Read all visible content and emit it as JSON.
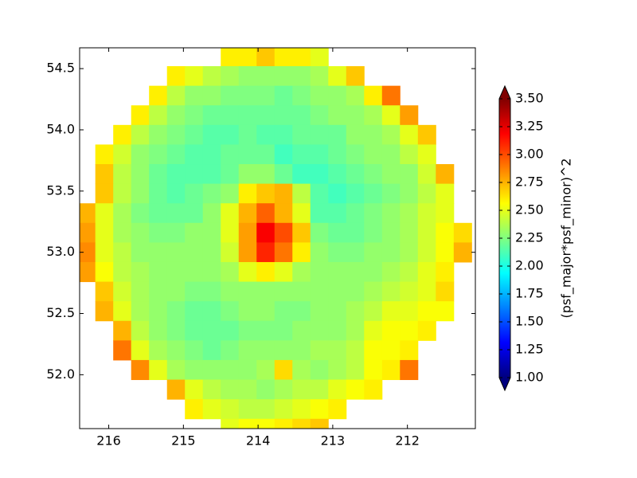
{
  "chart_data": {
    "type": "heatmap",
    "colormap": "jet",
    "colorbar_label": "(psf_major*psf_minor)^2",
    "clim": [
      1.0,
      3.5
    ],
    "cticks": [
      {
        "value": 1.0,
        "label": "1.00"
      },
      {
        "value": 1.25,
        "label": "1.25"
      },
      {
        "value": 1.5,
        "label": "1.50"
      },
      {
        "value": 1.75,
        "label": "1.75"
      },
      {
        "value": 2.0,
        "label": "2.00"
      },
      {
        "value": 2.25,
        "label": "2.25"
      },
      {
        "value": 2.5,
        "label": "2.50"
      },
      {
        "value": 2.75,
        "label": "2.75"
      },
      {
        "value": 3.0,
        "label": "3.00"
      },
      {
        "value": 3.25,
        "label": "3.25"
      },
      {
        "value": 3.5,
        "label": "3.50"
      }
    ],
    "xlim": [
      216.39,
      211.09
    ],
    "ylim": [
      51.56,
      54.67
    ],
    "xticks": [
      216,
      215,
      214,
      213,
      212
    ],
    "yticks": [
      {
        "value": 52.0,
        "label": "52.0"
      },
      52.5,
      {
        "value": 53.0,
        "label": "53.0"
      },
      53.5,
      {
        "value": 54.0,
        "label": "54.0"
      },
      54.5
    ],
    "x": [
      216.3,
      216.06,
      215.82,
      215.58,
      215.34,
      215.1,
      214.86,
      214.62,
      214.38,
      214.14,
      213.9,
      213.66,
      213.42,
      213.18,
      212.94,
      212.7,
      212.46,
      212.22,
      211.98,
      211.74,
      211.5,
      211.26
    ],
    "y": [
      54.6,
      54.44,
      54.28,
      54.12,
      53.96,
      53.8,
      53.64,
      53.48,
      53.32,
      53.16,
      53.0,
      52.84,
      52.68,
      52.52,
      52.36,
      52.2,
      52.04,
      51.88,
      51.72,
      51.56
    ],
    "z": [
      [
        null,
        null,
        null,
        null,
        null,
        null,
        null,
        null,
        2.6,
        2.6,
        2.7,
        2.6,
        2.6,
        2.5,
        null,
        null,
        null,
        null,
        null,
        null,
        null,
        null
      ],
      [
        null,
        null,
        null,
        null,
        null,
        2.6,
        2.5,
        2.4,
        2.35,
        2.3,
        2.3,
        2.3,
        2.3,
        2.35,
        2.5,
        2.7,
        null,
        null,
        null,
        null,
        null,
        null
      ],
      [
        null,
        null,
        null,
        null,
        2.6,
        2.4,
        2.3,
        2.3,
        2.25,
        2.25,
        2.25,
        2.2,
        2.25,
        2.3,
        2.3,
        2.35,
        2.6,
        2.9,
        null,
        null,
        null,
        null
      ],
      [
        null,
        null,
        null,
        2.6,
        2.4,
        2.3,
        2.25,
        2.2,
        2.2,
        2.2,
        2.2,
        2.2,
        2.2,
        2.25,
        2.3,
        2.3,
        2.35,
        2.5,
        2.8,
        null,
        null,
        null
      ],
      [
        null,
        null,
        2.6,
        2.4,
        2.3,
        2.25,
        2.2,
        2.15,
        2.15,
        2.2,
        2.15,
        2.15,
        2.2,
        2.2,
        2.2,
        2.3,
        2.3,
        2.35,
        2.5,
        2.7,
        null,
        null
      ],
      [
        null,
        2.6,
        2.45,
        2.3,
        2.25,
        2.2,
        2.15,
        2.15,
        2.2,
        2.2,
        2.2,
        2.1,
        2.15,
        2.15,
        2.2,
        2.25,
        2.3,
        2.3,
        2.4,
        2.5,
        null,
        null
      ],
      [
        null,
        2.7,
        2.4,
        2.3,
        2.2,
        2.15,
        2.15,
        2.15,
        2.2,
        2.3,
        2.3,
        2.2,
        2.1,
        2.1,
        2.15,
        2.2,
        2.25,
        2.3,
        2.3,
        2.45,
        2.75,
        null
      ],
      [
        null,
        2.7,
        2.4,
        2.3,
        2.2,
        2.15,
        2.2,
        2.25,
        2.3,
        2.6,
        2.7,
        2.75,
        2.4,
        2.15,
        2.1,
        2.15,
        2.2,
        2.25,
        2.3,
        2.4,
        2.5,
        null
      ],
      [
        2.75,
        2.5,
        2.35,
        2.25,
        2.2,
        2.2,
        2.2,
        2.3,
        2.5,
        2.75,
        2.95,
        2.75,
        2.5,
        2.15,
        2.15,
        2.2,
        2.25,
        2.3,
        2.35,
        2.45,
        2.5,
        null
      ],
      [
        2.8,
        2.5,
        2.35,
        2.3,
        2.25,
        2.25,
        2.3,
        2.3,
        2.5,
        2.8,
        3.2,
        3.0,
        2.7,
        2.25,
        2.2,
        2.2,
        2.25,
        2.3,
        2.35,
        2.45,
        2.55,
        2.65
      ],
      [
        2.85,
        2.5,
        2.4,
        2.3,
        2.3,
        2.3,
        2.3,
        2.3,
        2.45,
        2.8,
        3.1,
        2.9,
        2.6,
        2.3,
        2.25,
        2.25,
        2.3,
        2.3,
        2.35,
        2.45,
        2.55,
        2.75
      ],
      [
        2.8,
        2.55,
        2.4,
        2.35,
        2.3,
        2.3,
        2.3,
        2.3,
        2.35,
        2.5,
        2.6,
        2.5,
        2.35,
        2.3,
        2.3,
        2.3,
        2.3,
        2.35,
        2.4,
        2.5,
        2.6,
        null
      ],
      [
        null,
        2.7,
        2.45,
        2.35,
        2.3,
        2.3,
        2.25,
        2.25,
        2.3,
        2.3,
        2.3,
        2.3,
        2.3,
        2.3,
        2.3,
        2.3,
        2.35,
        2.4,
        2.45,
        2.5,
        2.65,
        null
      ],
      [
        null,
        2.75,
        2.5,
        2.35,
        2.3,
        2.25,
        2.2,
        2.2,
        2.25,
        2.3,
        2.3,
        2.25,
        2.25,
        2.3,
        2.3,
        2.35,
        2.4,
        2.5,
        2.5,
        2.55,
        2.55,
        null
      ],
      [
        null,
        null,
        2.75,
        2.4,
        2.3,
        2.25,
        2.2,
        2.2,
        2.2,
        2.25,
        2.25,
        2.25,
        2.3,
        2.3,
        2.3,
        2.35,
        2.5,
        2.55,
        2.55,
        2.6,
        null,
        null
      ],
      [
        null,
        null,
        2.9,
        2.5,
        2.35,
        2.3,
        2.25,
        2.2,
        2.25,
        2.3,
        2.3,
        2.3,
        2.3,
        2.35,
        2.35,
        2.4,
        2.55,
        2.55,
        2.6,
        null,
        null,
        null
      ],
      [
        null,
        null,
        null,
        2.85,
        2.5,
        2.35,
        2.3,
        2.3,
        2.3,
        2.3,
        2.35,
        2.65,
        2.35,
        2.3,
        2.35,
        2.4,
        2.55,
        2.6,
        2.9,
        null,
        null,
        null
      ],
      [
        null,
        null,
        null,
        null,
        null,
        2.75,
        2.5,
        2.4,
        2.35,
        2.35,
        2.3,
        2.35,
        2.4,
        2.4,
        2.5,
        2.55,
        2.6,
        null,
        null,
        null,
        null,
        null
      ],
      [
        null,
        null,
        null,
        null,
        null,
        null,
        2.6,
        2.5,
        2.45,
        2.4,
        2.4,
        2.45,
        2.5,
        2.55,
        2.6,
        null,
        null,
        null,
        null,
        null,
        null,
        null
      ],
      [
        null,
        null,
        null,
        null,
        null,
        null,
        null,
        null,
        2.5,
        2.55,
        2.55,
        2.6,
        2.65,
        2.7,
        null,
        null,
        null,
        null,
        null,
        null,
        null,
        null
      ]
    ]
  }
}
